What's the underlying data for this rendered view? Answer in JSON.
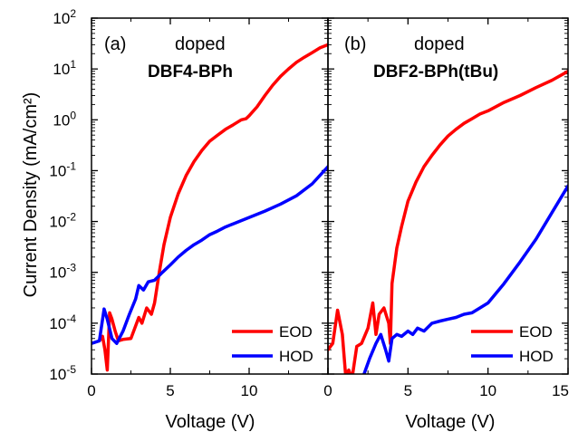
{
  "chart_data": [
    {
      "type": "line",
      "panel_label": "(a)",
      "annotation_line1": "doped",
      "annotation_line2": "DBF4-BPh",
      "xlim": [
        0,
        15
      ],
      "ylim": [
        1e-05,
        100
      ],
      "yscale": "log",
      "x_ticks": [
        "0",
        "5",
        "10",
        "0"
      ],
      "legend_position": "bottom-right",
      "series": [
        {
          "name": "EOD",
          "color": "#ff0000",
          "x": [
            0.5,
            0.7,
            0.85,
            1.0,
            1.15,
            1.3,
            1.5,
            1.7,
            2.0,
            2.5,
            3.0,
            3.2,
            3.5,
            3.8,
            4.0,
            4.3,
            4.6,
            5.0,
            5.5,
            6.0,
            6.5,
            7.0,
            7.5,
            8.0,
            8.5,
            9.0,
            9.5,
            9.8,
            10.0,
            10.5,
            11.0,
            11.5,
            12.0,
            12.5,
            13.0,
            13.5,
            14.0,
            14.5,
            15.0
          ],
          "y": [
            4.5e-05,
            5.5e-05,
            3e-05,
            1.2e-05,
            0.00016,
            0.00012,
            7e-05,
            4.5e-05,
            4.8e-05,
            5e-05,
            0.00013,
            0.0001,
            0.0002,
            0.00015,
            0.00025,
            0.001,
            0.0035,
            0.012,
            0.035,
            0.08,
            0.15,
            0.25,
            0.38,
            0.5,
            0.65,
            0.8,
            1.0,
            1.05,
            1.2,
            1.8,
            3.0,
            4.8,
            7.2,
            10.0,
            13.5,
            17.0,
            21.0,
            26.0,
            30.0
          ]
        },
        {
          "name": "HOD",
          "color": "#0000ff",
          "x": [
            0.0,
            0.5,
            0.8,
            1.0,
            1.3,
            1.6,
            2.0,
            2.4,
            2.8,
            3.0,
            3.3,
            3.6,
            4.0,
            4.5,
            5.0,
            5.5,
            6.0,
            6.5,
            7.0,
            7.5,
            8.0,
            8.5,
            9.0,
            10.0,
            11.0,
            12.0,
            13.0,
            14.0,
            15.0
          ],
          "y": [
            4e-05,
            4.5e-05,
            0.00019,
            0.00012,
            5e-05,
            4e-05,
            7e-05,
            0.00015,
            0.0003,
            0.00055,
            0.00045,
            0.00065,
            0.0007,
            0.001,
            0.0014,
            0.002,
            0.0027,
            0.0035,
            0.0043,
            0.0055,
            0.0065,
            0.0078,
            0.009,
            0.012,
            0.016,
            0.022,
            0.032,
            0.055,
            0.12
          ]
        }
      ]
    },
    {
      "type": "line",
      "panel_label": "(b)",
      "annotation_line1": "doped",
      "annotation_line2": "DBF2-BPh(tBu)",
      "xlim": [
        0,
        15
      ],
      "ylim": [
        1e-05,
        100
      ],
      "yscale": "log",
      "x_ticks": [
        "",
        "5",
        "10",
        "15"
      ],
      "legend_position": "bottom-right",
      "series": [
        {
          "name": "EOD",
          "color": "#ff0000",
          "x": [
            0.0,
            0.3,
            0.6,
            0.9,
            1.1,
            1.3,
            1.5,
            1.8,
            2.1,
            2.5,
            2.8,
            3.0,
            3.2,
            3.5,
            3.8,
            3.9,
            4.0,
            4.3,
            4.6,
            5.0,
            5.5,
            6.0,
            6.5,
            7.0,
            7.5,
            8.0,
            8.5,
            9.0,
            9.5,
            10.0,
            11.0,
            12.0,
            13.0,
            14.0,
            15.0
          ],
          "y": [
            3e-05,
            4e-05,
            0.00018,
            6e-05,
            1e-05,
            1.2e-05,
            8e-06,
            3.5e-05,
            4e-05,
            8e-05,
            0.00025,
            6e-05,
            0.00015,
            0.0002,
            0.0001,
            4e-05,
            0.0006,
            0.003,
            0.008,
            0.025,
            0.06,
            0.12,
            0.2,
            0.32,
            0.48,
            0.65,
            0.85,
            1.05,
            1.3,
            1.5,
            2.2,
            3.0,
            4.3,
            6.0,
            9.0
          ]
        },
        {
          "name": "HOD",
          "color": "#0000ff",
          "x": [
            2.2,
            2.6,
            3.0,
            3.3,
            3.6,
            3.8,
            4.0,
            4.3,
            4.6,
            5.0,
            5.3,
            5.6,
            6.0,
            6.5,
            7.0,
            7.5,
            8.0,
            8.5,
            9.0,
            9.5,
            10.0,
            11.0,
            12.0,
            13.0,
            14.0,
            15.0
          ],
          "y": [
            9e-06,
            2e-05,
            4e-05,
            6e-05,
            3e-05,
            1.8e-05,
            5e-05,
            6e-05,
            5.5e-05,
            7e-05,
            6e-05,
            8e-05,
            7e-05,
            0.0001,
            0.00011,
            0.00012,
            0.00013,
            0.00015,
            0.00016,
            0.0002,
            0.00025,
            0.0006,
            0.0016,
            0.0045,
            0.015,
            0.05
          ]
        }
      ]
    }
  ],
  "axes": {
    "ylabel": "Current Density (mA/cm²)",
    "xlabel": "Voltage (V)",
    "y_ticks": [
      {
        "base": "10",
        "exp": "2",
        "value": 100
      },
      {
        "base": "10",
        "exp": "1",
        "value": 10
      },
      {
        "base": "10",
        "exp": "0",
        "value": 1
      },
      {
        "base": "10",
        "exp": "-1",
        "value": 0.1
      },
      {
        "base": "10",
        "exp": "-2",
        "value": 0.01
      },
      {
        "base": "10",
        "exp": "-3",
        "value": 0.001
      },
      {
        "base": "10",
        "exp": "-4",
        "value": 0.0001
      },
      {
        "base": "10",
        "exp": "-5",
        "value": 1e-05
      }
    ]
  }
}
